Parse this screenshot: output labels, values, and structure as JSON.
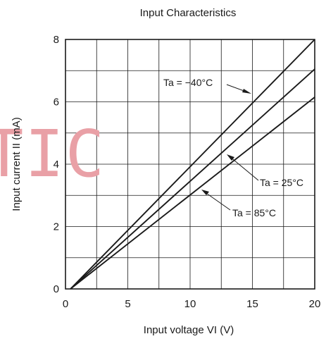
{
  "chart_data": {
    "type": "line",
    "title": "Input Characteristics",
    "xlabel": "Input voltage  VI (V)",
    "ylabel": "Input current  II (mA)",
    "xlim": [
      0,
      20
    ],
    "ylim": [
      0,
      8
    ],
    "xticks": [
      "0",
      "5",
      "10",
      "15",
      "20"
    ],
    "yticks": [
      "0",
      "2",
      "4",
      "6",
      "8"
    ],
    "grid": true,
    "series": [
      {
        "name": "Ta = −40°C",
        "x": [
          0.4,
          20
        ],
        "y": [
          0,
          8.0
        ]
      },
      {
        "name": "Ta = 25°C",
        "x": [
          0.4,
          20
        ],
        "y": [
          0,
          7.05
        ]
      },
      {
        "name": "Ta = 85°C",
        "x": [
          0.4,
          20
        ],
        "y": [
          0,
          6.15
        ]
      }
    ],
    "annotations": [
      "Ta = −40°C",
      "Ta = 25°C",
      "Ta = 85°C"
    ],
    "watermark": "TIC"
  }
}
